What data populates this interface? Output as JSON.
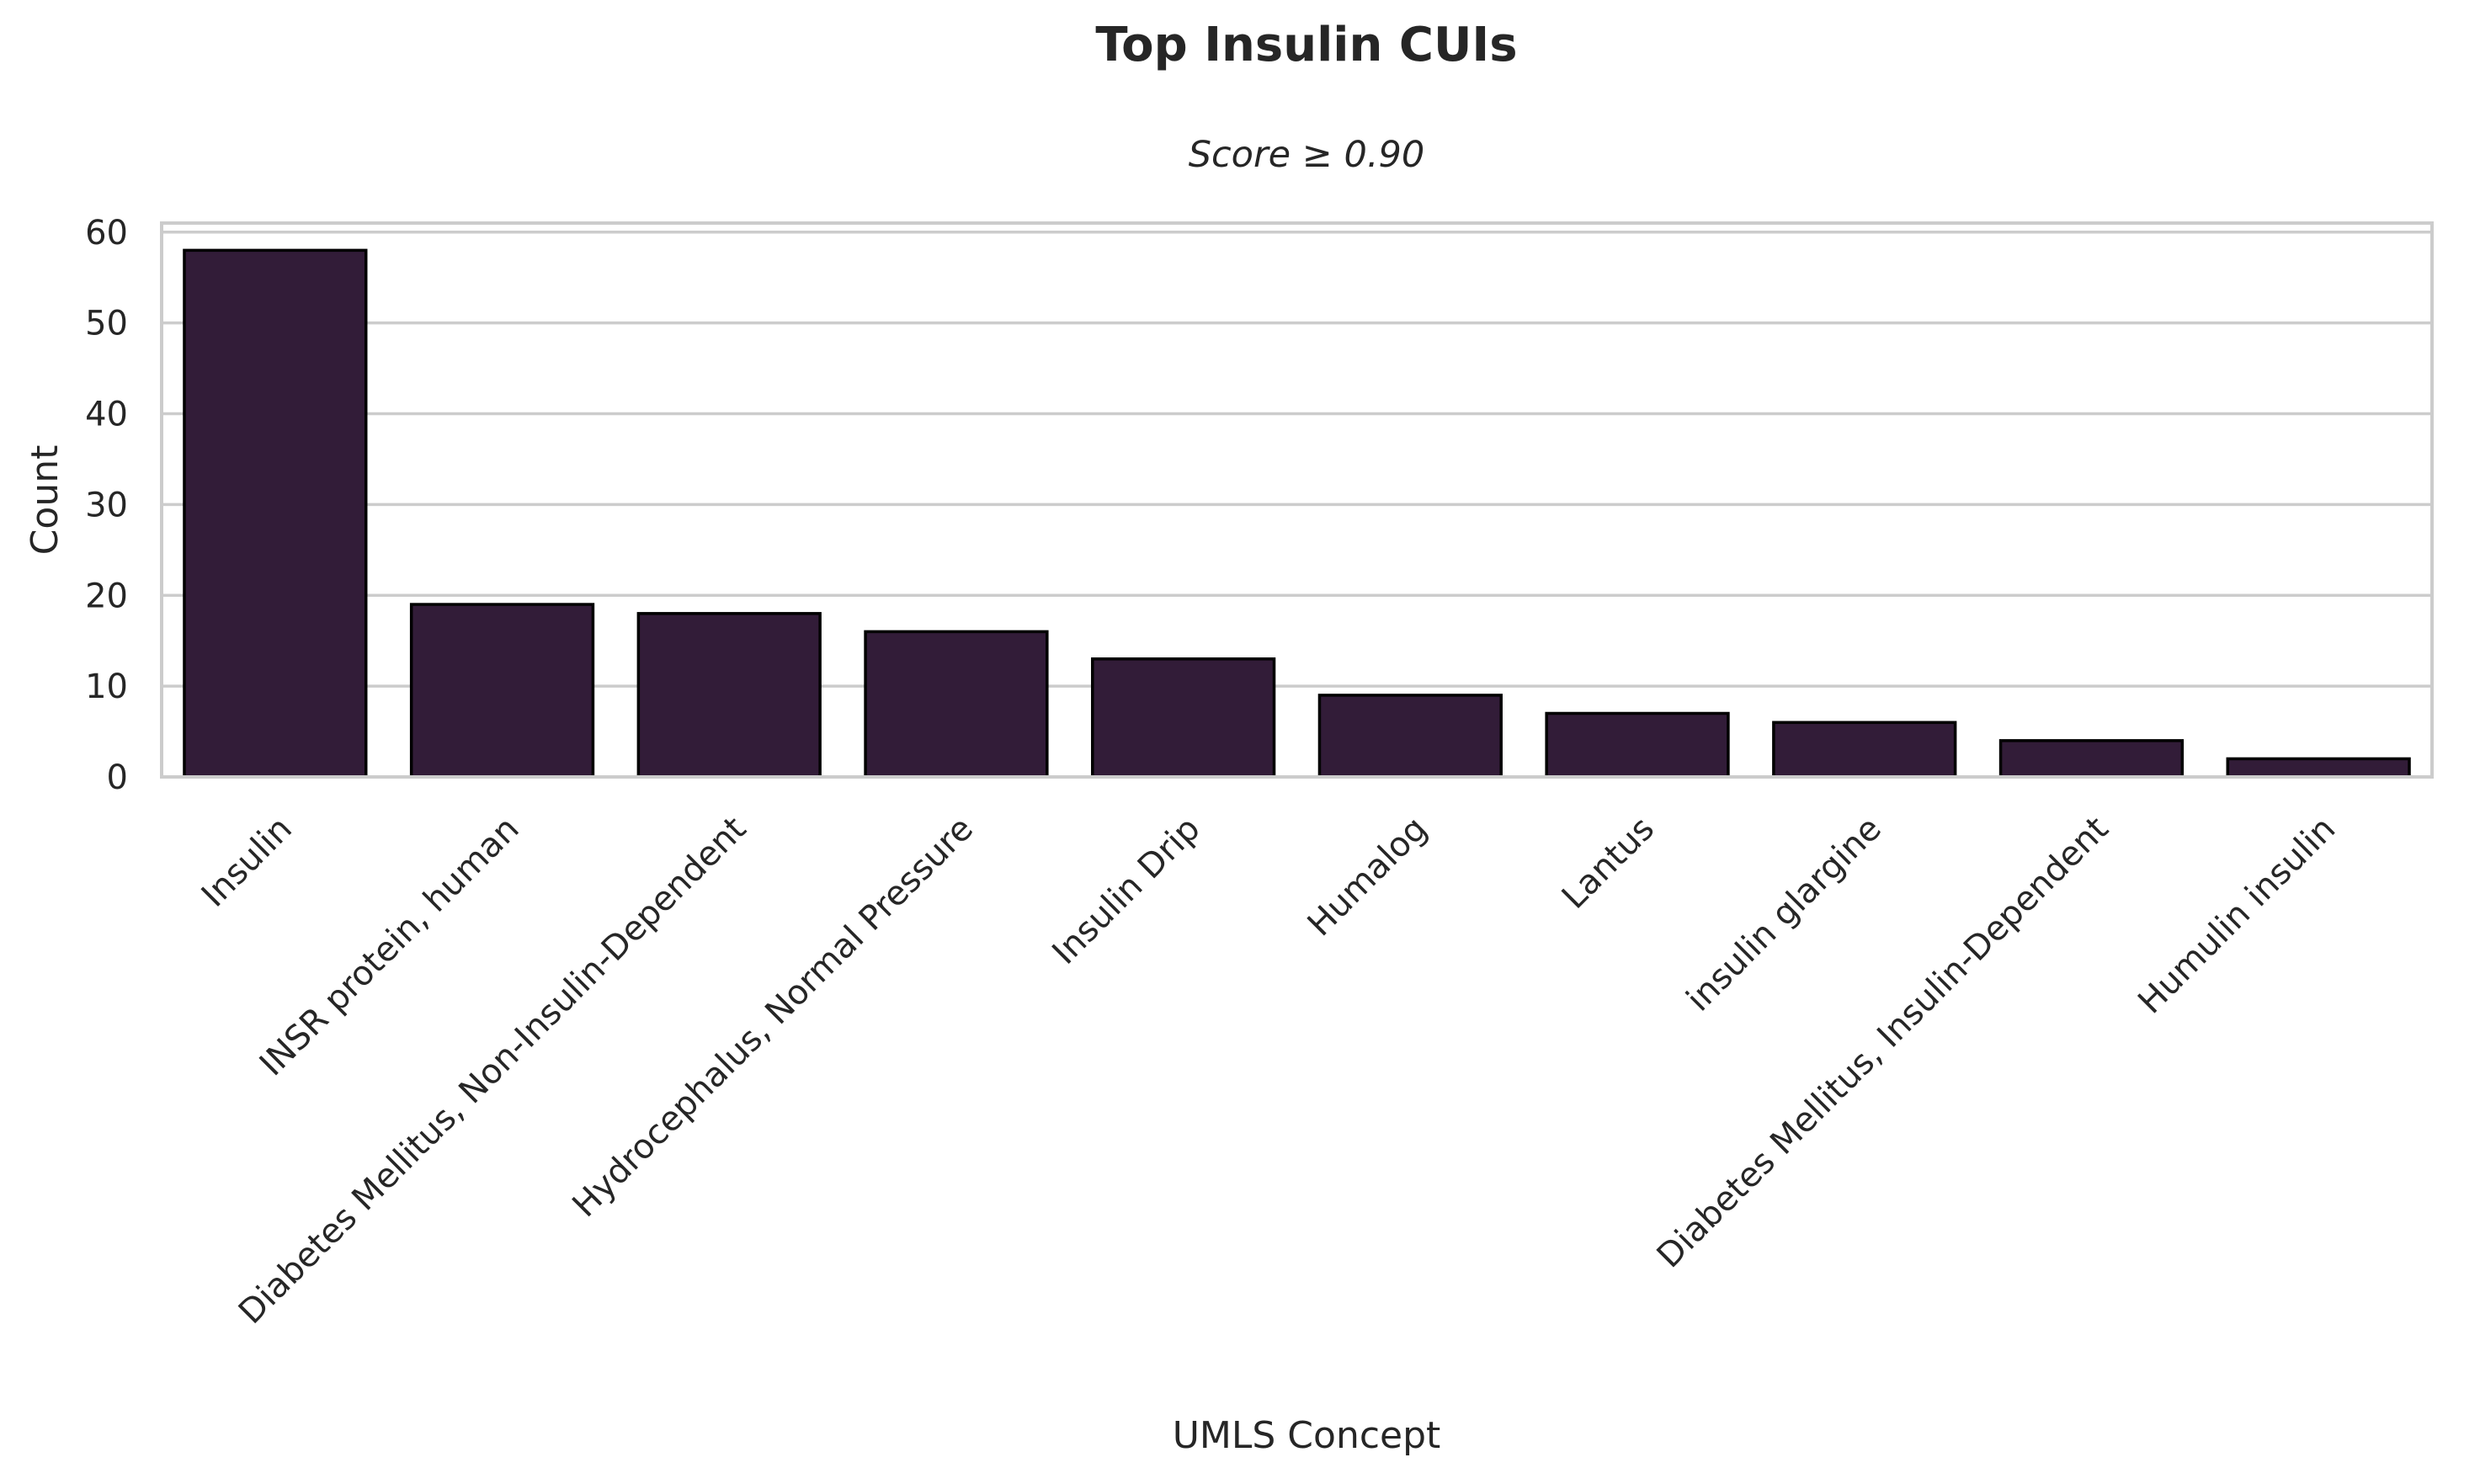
{
  "chart_data": {
    "type": "bar",
    "title": "Top Insulin CUIs",
    "subtitle": "Score ≥ 0.90",
    "xlabel": "UMLS Concept",
    "ylabel": "Count",
    "categories": [
      "Insulin",
      "INSR protein, human",
      "Diabetes Mellitus, Non-Insulin-Dependent",
      "Hydrocephalus, Normal Pressure",
      "Insulin Drip",
      "Humalog",
      "Lantus",
      "insulin glargine",
      "Diabetes Mellitus, Insulin-Dependent",
      "Humulin insulin"
    ],
    "values": [
      58,
      19,
      18,
      16,
      13,
      9,
      7,
      6,
      4,
      2
    ],
    "ylim": [
      0,
      61
    ],
    "yticks": [
      0,
      10,
      20,
      30,
      40,
      50,
      60
    ],
    "grid": true,
    "bar_color": "#321c38",
    "edge_color": "#000000"
  }
}
